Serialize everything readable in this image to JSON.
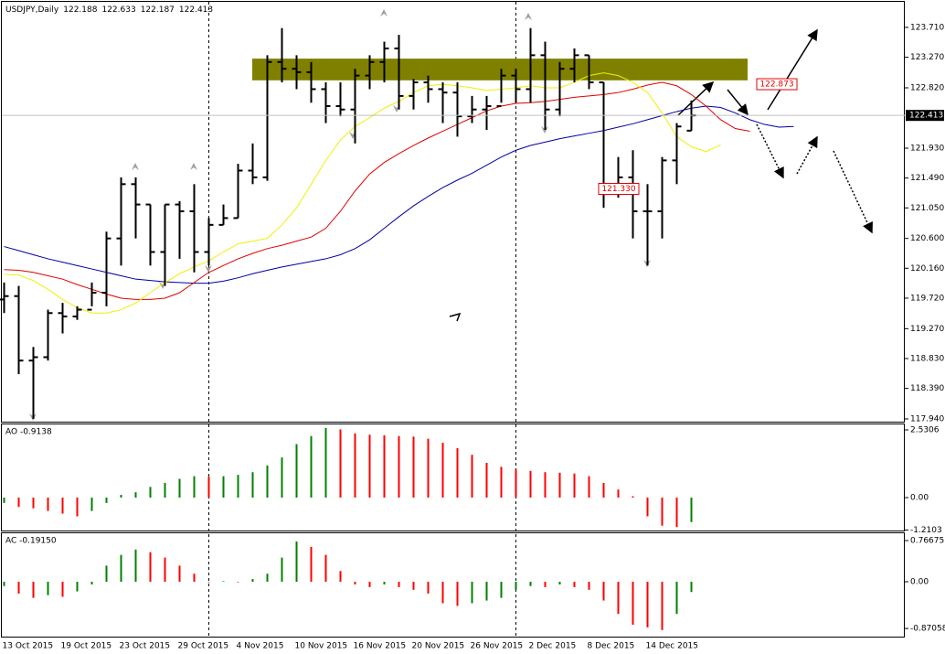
{
  "chart_data": [
    {
      "type": "ohlc",
      "title": "USDJPY,Daily",
      "categories": [
        "13 Oct 2015",
        null,
        null,
        null,
        "19 Oct 2015",
        null,
        null,
        null,
        "23 Oct 2015",
        null,
        null,
        null,
        "29 Oct 2015",
        null,
        null,
        null,
        "4 Nov 2015",
        null,
        null,
        null,
        "10 Nov 2015",
        null,
        null,
        null,
        "16 Nov 2015",
        null,
        null,
        null,
        "20 Nov 2015",
        null,
        null,
        null,
        "26 Nov 2015",
        null,
        null,
        null,
        "2 Dec 2015",
        null,
        null,
        null,
        "8 Dec 2015",
        null,
        null,
        null,
        "14 Dec 2015",
        null,
        null,
        null,
        null,
        null,
        null,
        null,
        null,
        null,
        null,
        null
      ],
      "open": [
        119.7,
        119.75,
        118.8,
        118.85,
        119.5,
        119.45,
        119.55,
        119.8,
        120.6,
        121.4,
        121.1,
        120.4,
        121.1,
        121.0,
        120.4,
        120.8,
        120.9,
        121.6,
        121.5,
        123.2,
        123.1,
        123.05,
        122.8,
        122.55,
        122.5,
        123.0,
        123.2,
        123.4,
        122.7,
        122.9,
        122.8,
        122.75,
        122.4,
        122.5,
        122.55,
        123.0,
        122.8,
        123.3,
        122.5,
        123.1,
        123.3,
        122.9,
        121.35,
        121.5,
        121.0,
        121.0,
        121.75,
        122.188,
        null,
        null,
        null,
        null,
        null,
        null,
        null,
        null
      ],
      "high": [
        119.95,
        119.9,
        119.0,
        119.55,
        119.65,
        119.6,
        119.95,
        120.7,
        121.5,
        121.5,
        121.1,
        121.1,
        121.15,
        121.4,
        120.9,
        121.1,
        121.7,
        122.0,
        123.3,
        123.7,
        123.3,
        123.2,
        122.9,
        122.9,
        123.1,
        123.3,
        123.5,
        123.6,
        122.95,
        123.0,
        122.9,
        122.9,
        122.7,
        122.7,
        123.1,
        123.1,
        123.7,
        123.5,
        123.2,
        123.4,
        123.3,
        122.9,
        121.8,
        121.9,
        121.4,
        121.8,
        122.3,
        122.633,
        null,
        null,
        null,
        null,
        null,
        null,
        null,
        null
      ],
      "low": [
        119.5,
        118.6,
        117.94,
        118.8,
        119.2,
        119.4,
        119.6,
        119.6,
        120.2,
        120.6,
        120.2,
        119.9,
        120.3,
        120.1,
        120.2,
        120.8,
        120.9,
        121.4,
        121.45,
        122.9,
        122.8,
        122.6,
        122.3,
        122.4,
        122.0,
        122.8,
        122.9,
        122.5,
        122.5,
        122.6,
        122.3,
        122.1,
        122.3,
        122.2,
        122.6,
        122.6,
        122.6,
        122.2,
        122.4,
        122.9,
        122.8,
        121.05,
        121.2,
        120.6,
        120.2,
        120.6,
        121.4,
        122.187,
        null,
        null,
        null,
        null,
        null,
        null,
        null,
        null
      ],
      "close": [
        119.75,
        118.8,
        118.85,
        119.5,
        119.45,
        119.55,
        119.8,
        120.6,
        121.4,
        121.1,
        120.4,
        121.1,
        121.0,
        120.4,
        120.8,
        120.9,
        121.6,
        121.5,
        123.2,
        123.1,
        123.05,
        122.8,
        122.55,
        122.5,
        123.0,
        123.2,
        123.4,
        122.7,
        122.9,
        122.8,
        122.75,
        122.4,
        122.5,
        122.55,
        123.0,
        122.8,
        123.3,
        122.5,
        123.1,
        123.3,
        122.9,
        121.35,
        121.5,
        121.0,
        121.0,
        121.75,
        122.25,
        122.413,
        null,
        null,
        null,
        null,
        null,
        null,
        null,
        null
      ],
      "color": "#000000",
      "lines": [
        {
          "color": "#0000a0",
          "values": [
            120.48,
            120.42,
            120.36,
            120.3,
            120.25,
            120.2,
            120.15,
            120.1,
            120.05,
            120.0,
            119.98,
            119.96,
            119.95,
            119.94,
            119.94,
            119.97,
            120.02,
            120.08,
            120.13,
            120.18,
            120.22,
            120.26,
            120.3,
            120.36,
            120.45,
            120.58,
            120.75,
            120.92,
            121.08,
            121.22,
            121.35,
            121.46,
            121.56,
            121.68,
            121.8,
            121.9,
            121.97,
            122.02,
            122.07,
            122.11,
            122.15,
            122.19,
            122.24,
            122.29,
            122.35,
            122.41,
            122.47,
            122.52,
            122.55,
            122.53,
            122.45,
            122.35,
            122.28,
            122.24,
            122.25,
            null
          ]
        },
        {
          "color": "#e00000",
          "values": [
            120.14,
            120.13,
            120.1,
            120.05,
            120.0,
            119.92,
            119.85,
            119.78,
            119.72,
            119.7,
            119.7,
            119.72,
            119.8,
            119.95,
            120.1,
            120.2,
            120.3,
            120.38,
            120.45,
            120.5,
            120.56,
            120.62,
            120.75,
            121.0,
            121.3,
            121.55,
            121.72,
            121.85,
            121.97,
            122.08,
            122.18,
            122.28,
            122.38,
            122.48,
            122.55,
            122.59,
            122.6,
            122.62,
            122.65,
            122.68,
            122.7,
            122.72,
            122.75,
            122.8,
            122.86,
            122.9,
            122.85,
            122.72,
            122.55,
            122.35,
            122.22,
            122.18,
            null,
            null,
            null,
            null
          ]
        },
        {
          "color": "#f0f000",
          "values": [
            120.07,
            120.06,
            119.98,
            119.85,
            119.7,
            119.58,
            119.5,
            119.5,
            119.55,
            119.65,
            119.8,
            119.95,
            120.08,
            120.18,
            120.27,
            120.4,
            120.52,
            120.56,
            120.6,
            120.8,
            121.05,
            121.4,
            121.75,
            122.05,
            122.25,
            122.38,
            122.52,
            122.62,
            122.75,
            122.85,
            122.87,
            122.85,
            122.82,
            122.78,
            122.8,
            122.82,
            122.85,
            122.82,
            122.82,
            122.9,
            123.0,
            123.04,
            123.0,
            122.9,
            122.75,
            122.45,
            122.1,
            121.95,
            121.88,
            121.98,
            null,
            null,
            null,
            null,
            null,
            null
          ]
        }
      ],
      "zone": [
        122.93,
        123.25
      ],
      "zone_color": "#808000",
      "price_labels": [
        {
          "value": 122.873,
          "label": "122.873"
        },
        {
          "value": 121.33,
          "label": "121.330"
        }
      ],
      "ylim": [
        117.886,
        124.087
      ],
      "yticks": [
        {
          "value": 123.71,
          "label": "123.710"
        },
        {
          "value": 123.27,
          "label": "123.270"
        },
        {
          "value": 122.82,
          "label": "122.820"
        },
        {
          "value": 121.93,
          "label": "121.930"
        },
        {
          "value": 121.49,
          "label": "121.490"
        },
        {
          "value": 121.05,
          "label": "121.050"
        },
        {
          "value": 120.6,
          "label": "120.600"
        },
        {
          "value": 120.16,
          "label": "120.160"
        },
        {
          "value": 119.72,
          "label": "119.720"
        },
        {
          "value": 119.27,
          "label": "119.270"
        },
        {
          "value": 118.83,
          "label": "118.830"
        },
        {
          "value": 118.39,
          "label": "118.390"
        },
        {
          "value": 117.94,
          "label": "117.940"
        }
      ]
    },
    {
      "type": "bar",
      "title": "AO -0.9138",
      "up_color": "#008000",
      "down_color": "#ff0000",
      "values": [
        -0.2,
        -0.35,
        -0.4,
        -0.5,
        -0.6,
        -0.7,
        -0.5,
        -0.2,
        0.1,
        0.2,
        0.4,
        0.55,
        0.7,
        0.8,
        0.78,
        0.8,
        0.85,
        0.95,
        1.2,
        1.5,
        2.0,
        2.3,
        2.6,
        2.55,
        2.4,
        2.35,
        2.33,
        2.3,
        2.28,
        2.2,
        2.05,
        1.85,
        1.6,
        1.3,
        1.15,
        1.05,
        1.0,
        0.95,
        0.93,
        0.9,
        0.8,
        0.55,
        0.3,
        0.05,
        -0.7,
        -1.05,
        -1.1,
        -0.9138
      ],
      "ylim": [
        -1.265,
        2.736
      ],
      "yticks": [
        2.5306,
        {
          "value": 0,
          "label": "0.00"
        },
        -1.2103
      ]
    },
    {
      "type": "bar",
      "title": "AC -0.19150",
      "up_color": "#008000",
      "down_color": "#ff0000",
      "values": [
        -0.08,
        -0.22,
        -0.3,
        -0.25,
        -0.28,
        -0.18,
        -0.05,
        0.3,
        0.5,
        0.6,
        0.55,
        0.45,
        0.3,
        0.15,
        -0.01,
        0.01,
        -0.01,
        0.05,
        0.15,
        0.45,
        0.75,
        0.65,
        0.5,
        0.2,
        -0.05,
        -0.1,
        -0.05,
        -0.1,
        -0.15,
        -0.22,
        -0.4,
        -0.45,
        -0.4,
        -0.35,
        -0.3,
        -0.15,
        -0.08,
        -0.1,
        -0.05,
        -0.1,
        -0.15,
        -0.35,
        -0.6,
        -0.8,
        -0.85,
        -0.9,
        -0.6,
        -0.1915
      ],
      "ylim": [
        -1.039,
        0.903
      ],
      "yticks": [
        0.76675,
        {
          "value": 0,
          "label": "0.00"
        },
        -0.87058
      ]
    }
  ]
}
